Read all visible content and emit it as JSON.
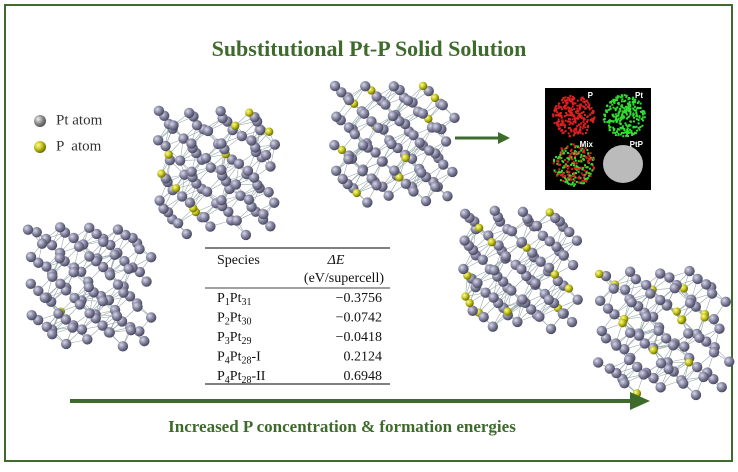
{
  "title": "Substitutional Pt-P Solid Solution",
  "legend": [
    {
      "label": "Pt atom"
    },
    {
      "label": "P  atom"
    }
  ],
  "micrograph": {
    "labels": [
      "P",
      "Pt",
      "Mix",
      "PtP"
    ]
  },
  "table": {
    "header": [
      "Species",
      "ΔE",
      "(eV/supercell)"
    ],
    "rows": [
      {
        "species": [
          "P",
          "1",
          "Pt",
          "31"
        ],
        "energy": "−0.3756"
      },
      {
        "species": [
          "P",
          "2",
          "Pt",
          "30"
        ],
        "energy": "−0.0742"
      },
      {
        "species": [
          "P",
          "3",
          "Pt",
          "29"
        ],
        "energy": "−0.0418"
      },
      {
        "species": [
          "P",
          "4",
          "Pt",
          "28",
          "-I"
        ],
        "energy": "0.2124"
      },
      {
        "species": [
          "P",
          "4",
          "Pt",
          "28",
          "-II"
        ],
        "energy": "0.6948"
      }
    ]
  },
  "caption": "Increased P concentration & formation energies"
}
